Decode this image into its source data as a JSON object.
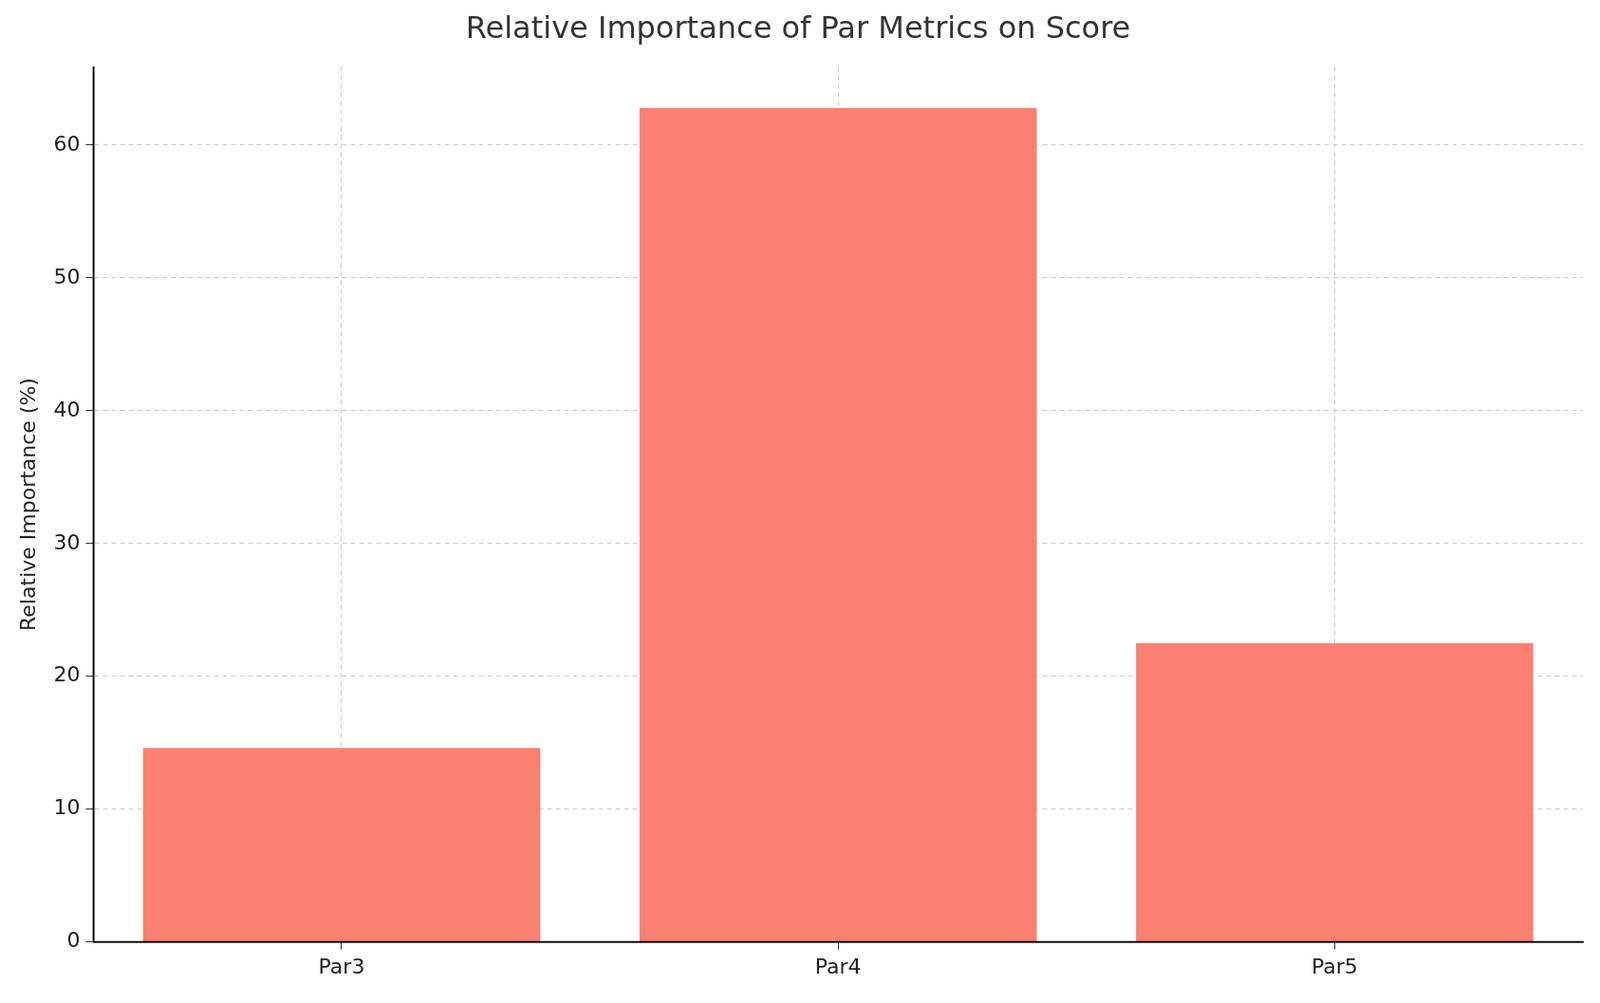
{
  "chart_data": {
    "type": "bar",
    "title": "Relative Importance of Par Metrics on Score",
    "y_label": "Relative Importance (%)",
    "categories": [
      "Par3",
      "Par4",
      "Par5"
    ],
    "values": [
      14.6,
      62.8,
      22.5
    ],
    "color": "#fa8072",
    "ylim": [
      0,
      65.9
    ],
    "yticks": [
      0,
      10,
      20,
      30,
      40,
      50,
      60
    ],
    "grid": true
  }
}
